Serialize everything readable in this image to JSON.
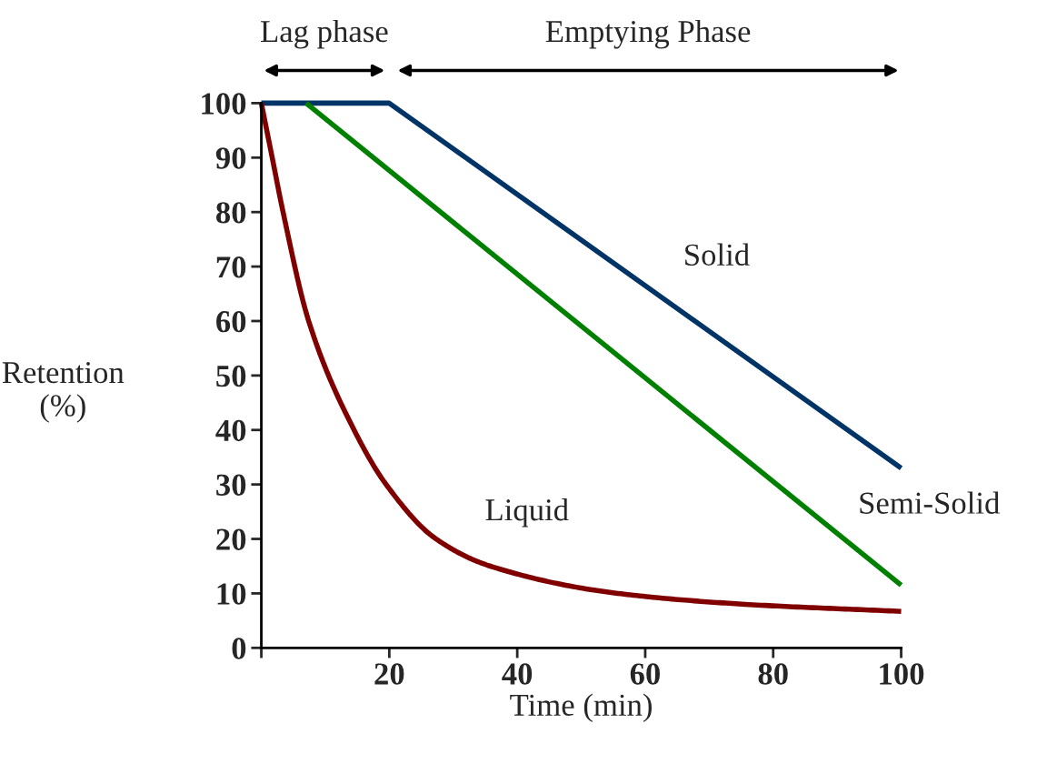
{
  "chart_data": {
    "type": "line",
    "xlabel": "Time (min)",
    "ylabel": "Retention\n(%)",
    "xlim": [
      0,
      100
    ],
    "xticks": [
      {
        "value": 0,
        "label": null
      },
      20,
      40,
      60,
      80,
      100
    ],
    "ylim": [
      0,
      100
    ],
    "yticks": [
      0,
      10,
      20,
      30,
      40,
      50,
      60,
      70,
      80,
      90,
      100
    ],
    "grid": false,
    "legend": false,
    "line_style": "solid",
    "marker": "none",
    "series": [
      {
        "name": "Solid",
        "color": "#003366",
        "x": [
          0,
          20,
          100
        ],
        "values": [
          100,
          100,
          33
        ]
      },
      {
        "name": "Semi-Solid",
        "color": "#008000",
        "x": [
          7,
          100
        ],
        "values": [
          100,
          11.5
        ]
      },
      {
        "name": "Liquid",
        "color": "#800000",
        "x": [
          0,
          1.7,
          3.4,
          7.4,
          14.5,
          19.5,
          27.3,
          35.8,
          55.7,
          75.6,
          100
        ],
        "values": [
          100,
          90,
          80,
          60,
          40,
          30,
          20,
          15,
          10,
          8,
          6.7
        ]
      }
    ],
    "annotations": [
      "Lag phase",
      "Emptying Phase"
    ]
  }
}
